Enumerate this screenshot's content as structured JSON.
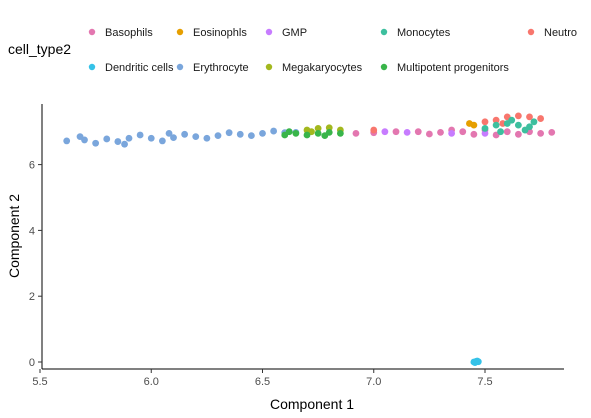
{
  "chart_data": {
    "type": "scatter",
    "xlabel": "Component 1",
    "ylabel": "Component 2",
    "xlim": [
      5.5,
      7.85
    ],
    "ylim": [
      -0.2,
      7.85
    ],
    "xticks": [
      5.5,
      6.0,
      6.5,
      7.0,
      7.5
    ],
    "xtick_labels": [
      "5.5",
      "6.0",
      "6.5",
      "7.0",
      "7.5"
    ],
    "yticks": [
      0,
      2,
      4,
      6
    ],
    "ytick_labels": [
      "0",
      "2",
      "4",
      "6"
    ],
    "grid": false,
    "legend": {
      "title": "cell_type2",
      "position": "top",
      "entries": [
        {
          "label": "Basophils",
          "color": "#e377b0"
        },
        {
          "label": "Eosinophls",
          "color": "#e69f00"
        },
        {
          "label": "GMP",
          "color": "#c77cff"
        },
        {
          "label": "Monocytes",
          "color": "#3dbf9e"
        },
        {
          "label": "Neutro",
          "color": "#f8766d"
        },
        {
          "label": "Dendritic cells",
          "color": "#35c2e8"
        },
        {
          "label": "Erythrocyte",
          "color": "#7aa6dc"
        },
        {
          "label": "Megakaryocytes",
          "color": "#a3b81e"
        },
        {
          "label": "Multipotent progenitors",
          "color": "#39b54a"
        }
      ]
    },
    "series": [
      {
        "name": "Erythrocyte",
        "color": "#7aa6dc",
        "points": [
          [
            5.62,
            6.72
          ],
          [
            5.7,
            6.75
          ],
          [
            5.8,
            6.78
          ],
          [
            5.9,
            6.8
          ],
          [
            6.0,
            6.8
          ],
          [
            6.1,
            6.82
          ],
          [
            6.2,
            6.85
          ],
          [
            6.3,
            6.88
          ],
          [
            6.4,
            6.92
          ],
          [
            6.5,
            6.95
          ],
          [
            6.6,
            6.97
          ],
          [
            6.65,
            6.98
          ],
          [
            5.75,
            6.65
          ],
          [
            5.85,
            6.7
          ],
          [
            5.95,
            6.9
          ],
          [
            6.05,
            6.72
          ],
          [
            6.15,
            6.92
          ],
          [
            6.25,
            6.8
          ],
          [
            6.35,
            6.97
          ],
          [
            6.45,
            6.88
          ],
          [
            6.55,
            7.02
          ],
          [
            5.68,
            6.85
          ],
          [
            5.88,
            6.62
          ],
          [
            6.08,
            6.95
          ]
        ]
      },
      {
        "name": "Megakaryocytes",
        "color": "#a3b81e",
        "points": [
          [
            6.7,
            7.05
          ],
          [
            6.75,
            7.1
          ],
          [
            6.8,
            7.12
          ],
          [
            6.72,
            7.0
          ],
          [
            6.85,
            7.05
          ]
        ]
      },
      {
        "name": "Multipotent progenitors",
        "color": "#39b54a",
        "points": [
          [
            6.6,
            6.9
          ],
          [
            6.65,
            6.95
          ],
          [
            6.7,
            6.9
          ],
          [
            6.75,
            6.95
          ],
          [
            6.8,
            6.98
          ],
          [
            6.85,
            6.95
          ],
          [
            6.62,
            7.0
          ],
          [
            6.78,
            6.88
          ]
        ]
      },
      {
        "name": "Basophils",
        "color": "#e377b0",
        "points": [
          [
            6.92,
            6.95
          ],
          [
            7.0,
            6.97
          ],
          [
            7.1,
            7.0
          ],
          [
            7.2,
            7.0
          ],
          [
            7.3,
            6.98
          ],
          [
            7.4,
            7.0
          ],
          [
            7.5,
            7.05
          ],
          [
            7.6,
            7.0
          ],
          [
            7.7,
            7.0
          ],
          [
            7.8,
            6.98
          ],
          [
            7.45,
            6.92
          ],
          [
            7.55,
            6.9
          ],
          [
            7.65,
            6.92
          ],
          [
            7.75,
            6.95
          ],
          [
            7.35,
            7.05
          ],
          [
            7.25,
            6.93
          ]
        ]
      },
      {
        "name": "GMP",
        "color": "#c77cff",
        "points": [
          [
            7.05,
            7.0
          ],
          [
            7.15,
            6.98
          ],
          [
            7.35,
            6.95
          ],
          [
            7.5,
            6.95
          ]
        ]
      },
      {
        "name": "Eosinophls",
        "color": "#e69f00",
        "points": [
          [
            7.43,
            7.25
          ],
          [
            7.45,
            7.2
          ]
        ]
      },
      {
        "name": "Neutro",
        "color": "#f8766d",
        "points": [
          [
            7.0,
            7.05
          ],
          [
            7.5,
            7.3
          ],
          [
            7.55,
            7.35
          ],
          [
            7.6,
            7.45
          ],
          [
            7.65,
            7.48
          ],
          [
            7.7,
            7.45
          ],
          [
            7.75,
            7.4
          ],
          [
            7.58,
            7.25
          ]
        ]
      },
      {
        "name": "Monocytes",
        "color": "#3dbf9e",
        "points": [
          [
            7.5,
            7.1
          ],
          [
            7.55,
            7.2
          ],
          [
            7.6,
            7.25
          ],
          [
            7.65,
            7.2
          ],
          [
            7.7,
            7.15
          ],
          [
            7.72,
            7.3
          ],
          [
            7.68,
            7.05
          ],
          [
            7.62,
            7.35
          ],
          [
            7.57,
            7.0
          ]
        ]
      },
      {
        "name": "Dendritic cells",
        "color": "#35c2e8",
        "points": [
          [
            7.45,
            0.0
          ],
          [
            7.46,
            0.02
          ],
          [
            7.47,
            0.01
          ],
          [
            7.455,
            -0.02
          ],
          [
            7.465,
            0.03
          ]
        ]
      }
    ]
  }
}
